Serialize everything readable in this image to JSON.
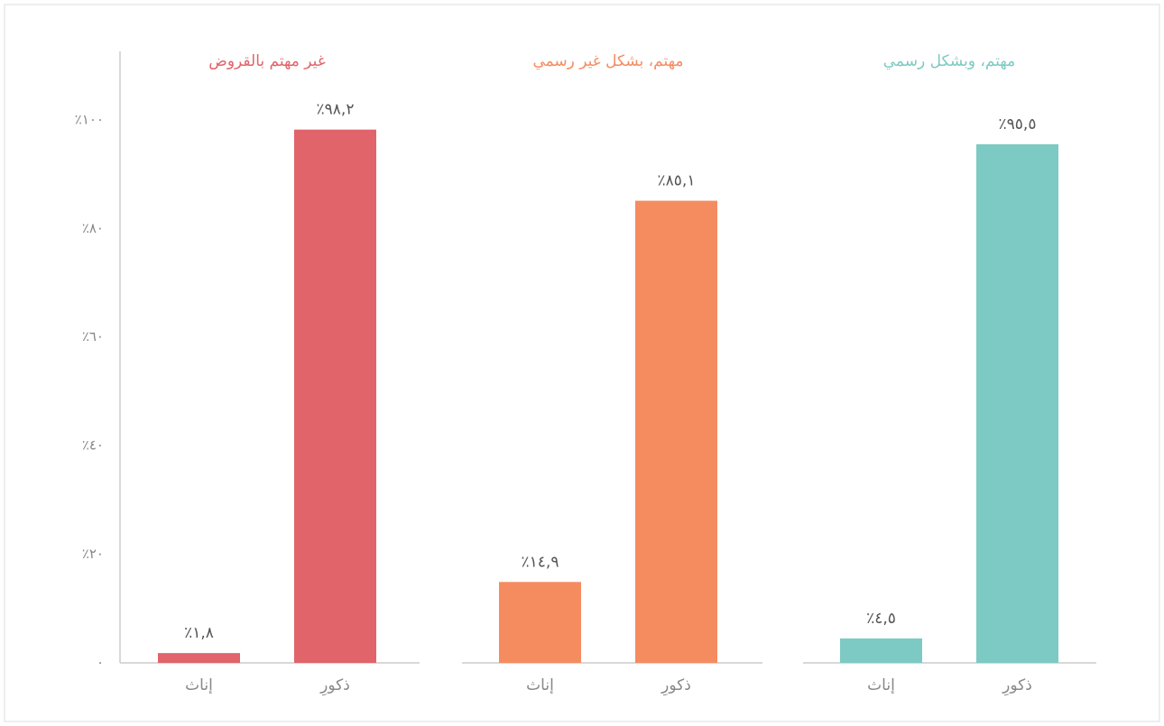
{
  "chart_data": [
    {
      "type": "bar",
      "title": "غير مهتم بالقروض",
      "categories": [
        "إناث",
        "ذكورِ"
      ],
      "values": [
        1.8,
        98.2
      ],
      "value_labels": [
        "٪١,٨",
        "٪٩٨,٢"
      ],
      "color": "#e0646a",
      "ylim": [
        0,
        112.6
      ],
      "yticks": [
        {
          "value": 0,
          "label": "٠"
        },
        {
          "value": 20,
          "label": "٪٢٠"
        },
        {
          "value": 40,
          "label": "٪٤٠"
        },
        {
          "value": 60,
          "label": "٪٦٠"
        },
        {
          "value": 80,
          "label": "٪٨٠"
        },
        {
          "value": 100,
          "label": "٪١٠٠"
        }
      ]
    },
    {
      "type": "bar",
      "title": "مهتم، بشكل غير رسمي",
      "categories": [
        "إناث",
        "ذكورِ"
      ],
      "values": [
        14.9,
        85.1
      ],
      "value_labels": [
        "٪١٤,٩",
        "٪٨٥,١"
      ],
      "color": "#f58c60",
      "ylim": [
        0,
        112.6
      ]
    },
    {
      "type": "bar",
      "title": "مهتم، وبشكل رسمي",
      "categories": [
        "إناث",
        "ذكورِ"
      ],
      "values": [
        4.5,
        95.5
      ],
      "value_labels": [
        "٪٤,٥",
        "٪٩٥,٥"
      ],
      "color": "#7ccac3",
      "ylim": [
        0,
        112.6
      ]
    }
  ]
}
